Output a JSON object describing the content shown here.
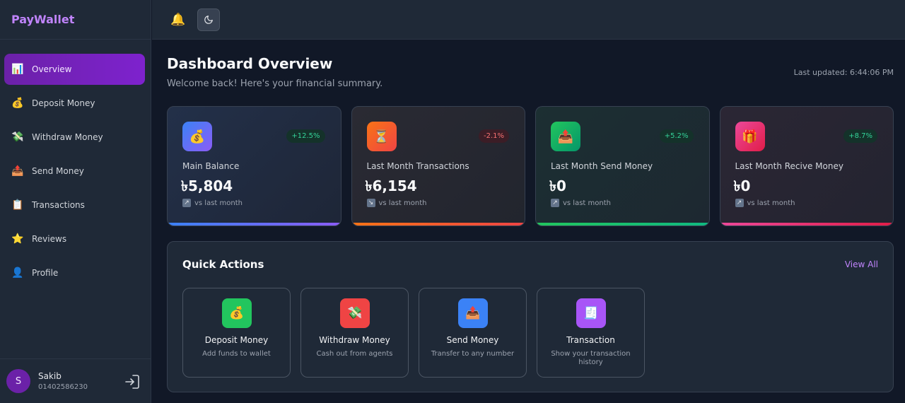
{
  "app": {
    "brand": "PayWallet"
  },
  "sidebar": {
    "items": [
      {
        "label": "Overview",
        "icon": "📊",
        "active": true
      },
      {
        "label": "Deposit Money",
        "icon": "💰",
        "active": false
      },
      {
        "label": "Withdraw Money",
        "icon": "💸",
        "active": false
      },
      {
        "label": "Send Money",
        "icon": "📤",
        "active": false
      },
      {
        "label": "Transactions",
        "icon": "📋",
        "active": false
      },
      {
        "label": "Reviews",
        "icon": "⭐",
        "active": false
      },
      {
        "label": "Profile",
        "icon": "👤",
        "active": false
      }
    ]
  },
  "user": {
    "initial": "S",
    "name": "Sakib",
    "phone": "01402586230"
  },
  "topbar": {
    "bell_icon": "🔔",
    "theme_icon": "moon-icon"
  },
  "header": {
    "title": "Dashboard Overview",
    "subtitle": "Welcome back! Here's your financial summary.",
    "last_updated": "Last updated: 6:44:06 PM"
  },
  "stats": [
    {
      "label": "Main Balance",
      "value": "৳5,804",
      "change": "+12.5%",
      "trend": "up",
      "trend_icon": "↗",
      "vs": "vs last month",
      "icon": "💰",
      "icon_bg": "linear-gradient(135deg,#3b82f6,#8b5cf6)",
      "bar": "linear-gradient(90deg,#3b82f6,#8b5cf6)"
    },
    {
      "label": "Last Month Transactions",
      "value": "৳6,154",
      "change": "-2.1%",
      "trend": "down",
      "trend_icon": "↘",
      "vs": "vs last month",
      "icon": "⏳",
      "icon_bg": "linear-gradient(135deg,#f97316,#ef4444)",
      "bar": "linear-gradient(90deg,#f97316,#ef4444)"
    },
    {
      "label": "Last Month Send Money",
      "value": "৳0",
      "change": "+5.2%",
      "trend": "up",
      "trend_icon": "↗",
      "vs": "vs last month",
      "icon": "📤",
      "icon_bg": "linear-gradient(135deg,#22c55e,#059669)",
      "bar": "linear-gradient(90deg,#22c55e,#10b981)"
    },
    {
      "label": "Last Month Recive Money",
      "value": "৳0",
      "change": "+8.7%",
      "trend": "up",
      "trend_icon": "↗",
      "vs": "vs last month",
      "icon": "🎁",
      "icon_bg": "linear-gradient(135deg,#ec4899,#e11d48)",
      "bar": "linear-gradient(90deg,#ec4899,#e11d48)"
    }
  ],
  "quick_actions": {
    "title": "Quick Actions",
    "view_all": "View All",
    "items": [
      {
        "name": "Deposit Money",
        "desc": "Add funds to wallet",
        "icon": "💰",
        "bg": "#22c55e"
      },
      {
        "name": "Withdraw Money",
        "desc": "Cash out from agents",
        "icon": "💸",
        "bg": "#ef4444"
      },
      {
        "name": "Send Money",
        "desc": "Transfer to any number",
        "icon": "📤",
        "bg": "#3b82f6"
      },
      {
        "name": "Transaction",
        "desc": "Show your transaction history",
        "icon": "🧾",
        "bg": "#a855f7"
      }
    ]
  }
}
